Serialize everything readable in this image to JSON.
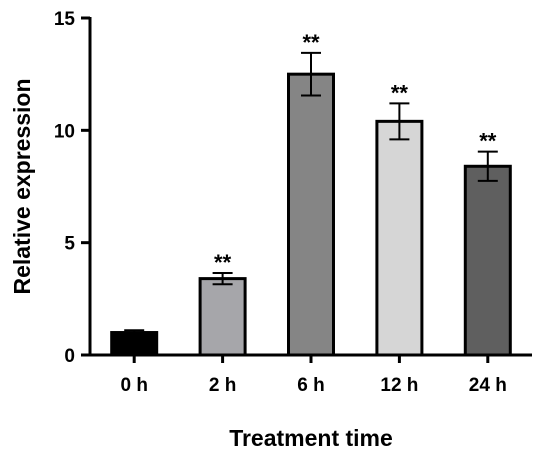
{
  "chart_data": {
    "type": "bar",
    "title": "",
    "xlabel": "Treatment time",
    "ylabel": "Relative expression",
    "ylim": [
      0,
      15
    ],
    "yticks": [
      "0",
      "5",
      "10",
      "15"
    ],
    "categories": [
      "0 h",
      "2 h",
      "6 h",
      "12 h",
      "24 h"
    ],
    "values": [
      1.0,
      3.4,
      12.5,
      10.4,
      8.4
    ],
    "errors": [
      0.1,
      0.25,
      0.95,
      0.8,
      0.65
    ],
    "significance": [
      "",
      "**",
      "**",
      "**",
      "**"
    ],
    "bar_colors": [
      "#000000",
      "#a6a6aa",
      "#858585",
      "#d6d6d6",
      "#5f5f5f"
    ],
    "grid": false,
    "legend": "none"
  }
}
